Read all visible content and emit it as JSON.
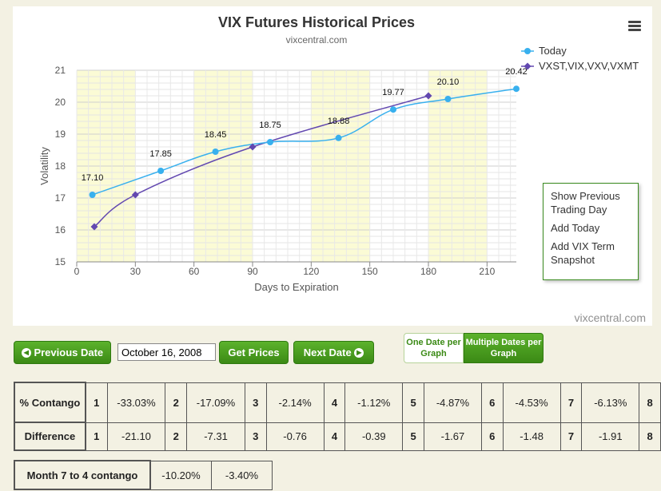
{
  "chart_data": {
    "type": "line",
    "title": "VIX Futures Historical Prices",
    "subtitle": "vixcentral.com",
    "xlabel": "Days to Expiration",
    "ylabel": "Volatility",
    "xlim": [
      0,
      225
    ],
    "ylim": [
      15,
      21
    ],
    "x_ticks": [
      0,
      30,
      60,
      90,
      120,
      150,
      180,
      210
    ],
    "y_ticks": [
      15,
      16,
      17,
      18,
      19,
      20,
      21
    ],
    "legend_position": "top-right",
    "series": [
      {
        "name": "Today",
        "color": "#38b0ee",
        "marker": "circle",
        "x": [
          8,
          43,
          71,
          99,
          134,
          162,
          190,
          225
        ],
        "y": [
          17.1,
          17.85,
          18.45,
          18.75,
          18.88,
          19.77,
          20.1,
          20.42
        ],
        "labels": [
          "17.10",
          "17.85",
          "18.45",
          "18.75",
          "18.88",
          "19.77",
          "20.10",
          "20.42"
        ]
      },
      {
        "name": "VXST,VIX,VXV,VXMT",
        "color": "#6248b0",
        "marker": "diamond",
        "x": [
          9,
          30,
          90,
          180
        ],
        "y": [
          16.1,
          17.1,
          18.6,
          20.2
        ],
        "labels": []
      }
    ],
    "bands": [
      [
        0,
        30
      ],
      [
        60,
        90
      ],
      [
        120,
        150
      ],
      [
        180,
        210
      ]
    ],
    "credit": "vixcentral.com"
  },
  "menu": {
    "items": [
      "Show Previous Trading Day",
      "Add Today",
      "Add VIX Term Snapshot"
    ]
  },
  "controls": {
    "previous_date": "Previous Date",
    "date_value": "October 16, 2008",
    "get_prices": "Get Prices",
    "next_date": "Next Date",
    "one_date": "One Date per Graph",
    "multiple_dates": "Multiple Dates per Graph"
  },
  "contango_table": {
    "rows": [
      {
        "label": "% Contango",
        "cells": [
          {
            "m": "1",
            "v": "-33.03%"
          },
          {
            "m": "2",
            "v": "-17.09%"
          },
          {
            "m": "3",
            "v": "-2.14%"
          },
          {
            "m": "4",
            "v": "-1.12%"
          },
          {
            "m": "5",
            "v": "-4.87%"
          },
          {
            "m": "6",
            "v": "-4.53%"
          },
          {
            "m": "7",
            "v": "-6.13%"
          },
          {
            "m": "8",
            "v": ""
          }
        ]
      },
      {
        "label": "Difference",
        "cells": [
          {
            "m": "1",
            "v": "-21.10"
          },
          {
            "m": "2",
            "v": "-7.31"
          },
          {
            "m": "3",
            "v": "-0.76"
          },
          {
            "m": "4",
            "v": "-0.39"
          },
          {
            "m": "5",
            "v": "-1.67"
          },
          {
            "m": "6",
            "v": "-1.48"
          },
          {
            "m": "7",
            "v": "-1.91"
          },
          {
            "m": "8",
            "v": ""
          }
        ]
      }
    ]
  },
  "month_table": {
    "label": "Month 7 to 4 contango",
    "values": [
      "-10.20%",
      "-3.40%"
    ]
  }
}
